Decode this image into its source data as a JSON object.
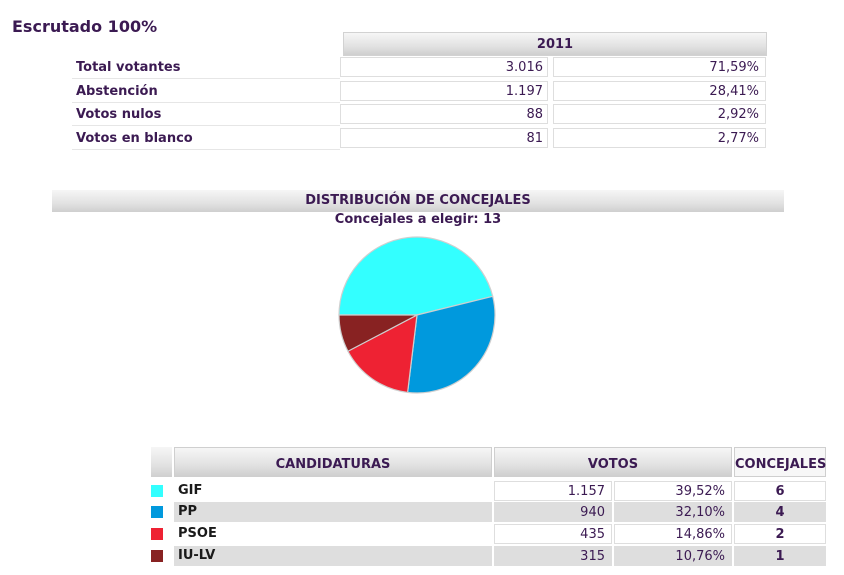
{
  "title": "Escrutado 100%",
  "summary": {
    "year": "2011",
    "rows": [
      {
        "label": "Total votantes",
        "count": "3.016",
        "pct": "71,59%"
      },
      {
        "label": "Abstención",
        "count": "1.197",
        "pct": "28,41%"
      },
      {
        "label": "Votos nulos",
        "count": "88",
        "pct": "2,92%"
      },
      {
        "label": "Votos en blanco",
        "count": "81",
        "pct": "2,77%"
      }
    ]
  },
  "distribution": {
    "title": "DISTRIBUCIÓN DE CONCEJALES",
    "subtitle": "Concejales a elegir: 13"
  },
  "results": {
    "headers": {
      "candidaturas": "CANDIDATURAS",
      "votos": "VOTOS",
      "concejales": "CONCEJALES"
    },
    "rows": [
      {
        "name": "GIF",
        "votes": "1.157",
        "pct": "39,52%",
        "seats": "6",
        "color": "#33ffff"
      },
      {
        "name": "PP",
        "votes": "940",
        "pct": "32,10%",
        "seats": "4",
        "color": "#0099dd"
      },
      {
        "name": "PSOE",
        "votes": "435",
        "pct": "14,86%",
        "seats": "2",
        "color": "#ee2233"
      },
      {
        "name": "IU-LV",
        "votes": "315",
        "pct": "10,76%",
        "seats": "1",
        "color": "#882222"
      }
    ]
  },
  "chart_data": {
    "type": "pie",
    "categories": [
      "GIF",
      "PP",
      "PSOE",
      "IU-LV"
    ],
    "values": [
      6,
      4,
      2,
      1
    ],
    "colors": [
      "#33ffff",
      "#0099dd",
      "#ee2233",
      "#882222"
    ],
    "title": "DISTRIBUCIÓN DE CONCEJALES",
    "subtitle": "Concejales a elegir: 13"
  }
}
